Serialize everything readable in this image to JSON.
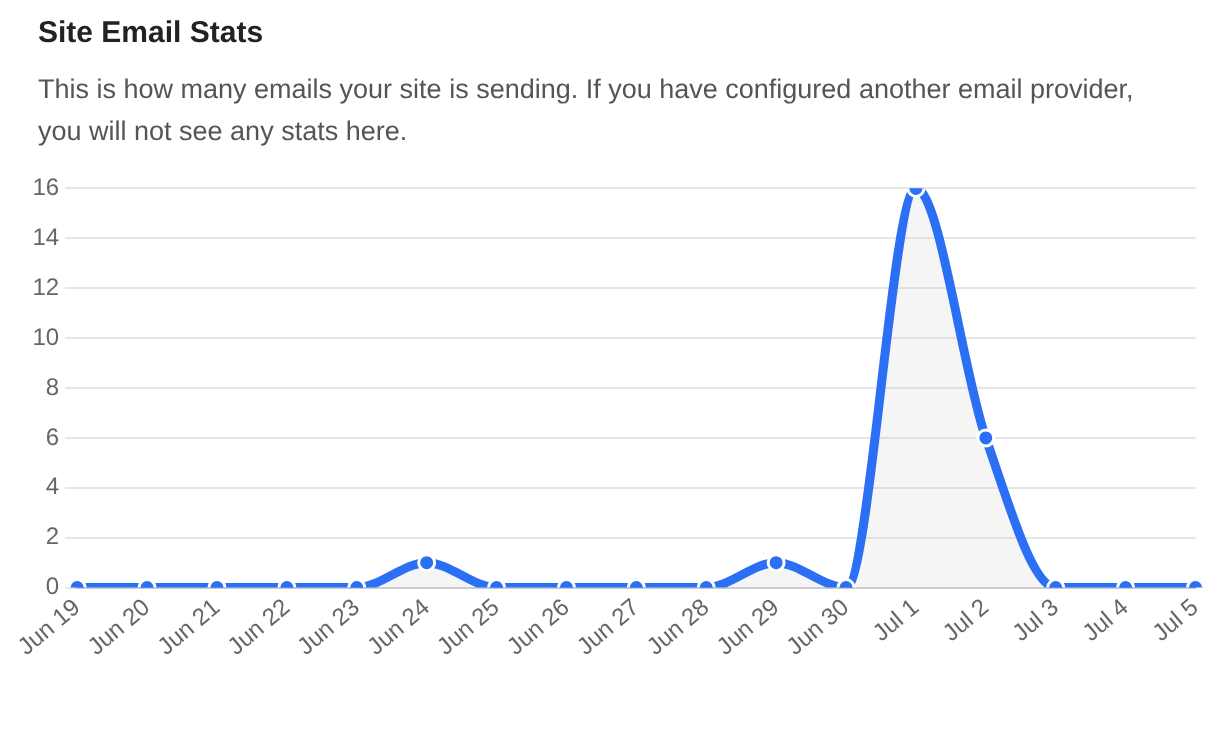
{
  "chart_data": {
    "type": "area",
    "title": "Site Email Stats",
    "subtitle": "This is how many emails your site is sending. If you have configured another email provider, you will not see any stats here.",
    "categories": [
      "Jun 19",
      "Jun 20",
      "Jun 21",
      "Jun 22",
      "Jun 23",
      "Jun 24",
      "Jun 25",
      "Jun 26",
      "Jun 27",
      "Jun 28",
      "Jun 29",
      "Jun 30",
      "Jul 1",
      "Jul 2",
      "Jul 3",
      "Jul 4",
      "Jul 5"
    ],
    "series": [
      {
        "color": "#2b6ff5",
        "values": [
          0,
          0,
          0,
          0,
          0,
          1,
          0,
          0,
          0,
          0,
          1,
          0,
          16,
          6,
          0,
          0,
          0
        ]
      }
    ],
    "ylim": [
      0,
      16
    ],
    "yticks": [
      0,
      2,
      4,
      6,
      8,
      10,
      12,
      14,
      16
    ],
    "grid": "y",
    "marker": "circle",
    "legend": false
  }
}
